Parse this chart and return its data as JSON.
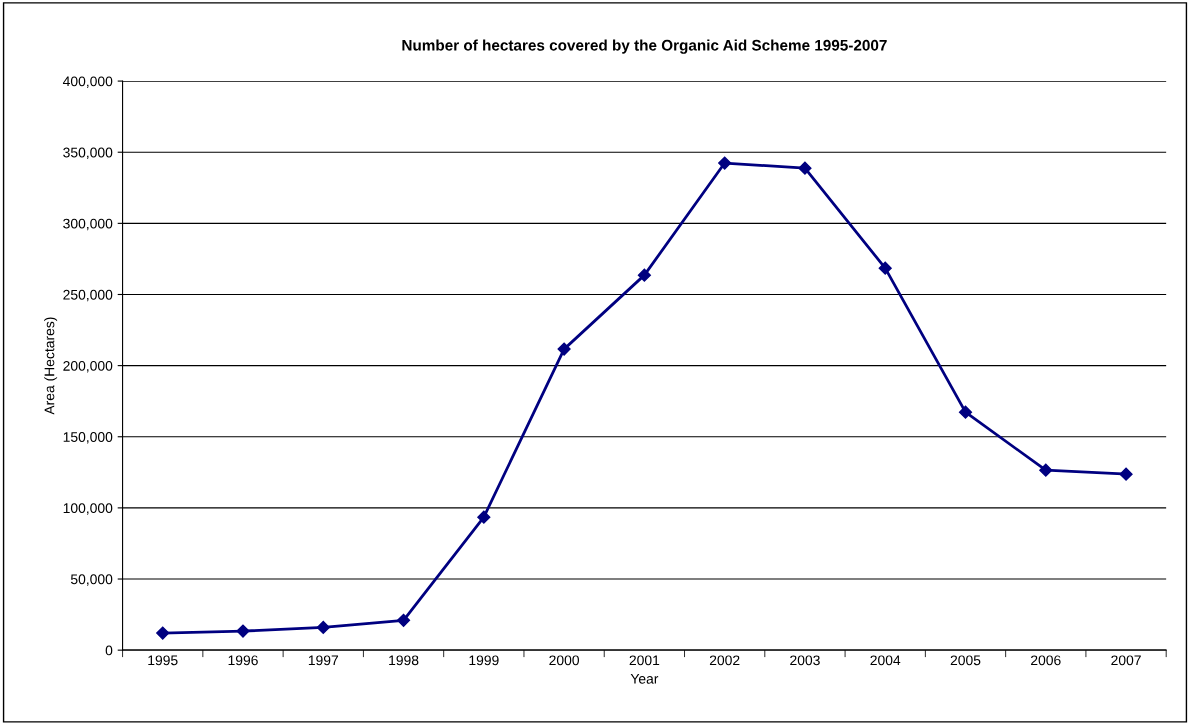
{
  "chart_data": {
    "type": "line",
    "title": "Number of hectares covered by the Organic Aid Scheme 1995-2007",
    "xlabel": "Year",
    "ylabel": "Area (Hectares)",
    "categories": [
      "1995",
      "1996",
      "1997",
      "1998",
      "1999",
      "2000",
      "2001",
      "2002",
      "2003",
      "2004",
      "2005",
      "2006",
      "2007"
    ],
    "series": [
      {
        "color": "#000080",
        "values": [
          12000,
          13400,
          16000,
          21000,
          93500,
          211600,
          263600,
          342400,
          338800,
          268500,
          167300,
          126500,
          123700
        ]
      }
    ],
    "ylim": [
      0,
      400000
    ],
    "yticks": [
      {
        "value": 0,
        "label": "0"
      },
      {
        "value": 50000,
        "label": "50,000"
      },
      {
        "value": 100000,
        "label": "100,000"
      },
      {
        "value": 150000,
        "label": "150,000"
      },
      {
        "value": 200000,
        "label": "200,000"
      },
      {
        "value": 250000,
        "label": "250,000"
      },
      {
        "value": 300000,
        "label": "300,000"
      },
      {
        "value": 350000,
        "label": "350,000"
      },
      {
        "value": 400000,
        "label": "400,000"
      }
    ],
    "grid": "y",
    "marker": "diamond",
    "line_style": "solid"
  }
}
